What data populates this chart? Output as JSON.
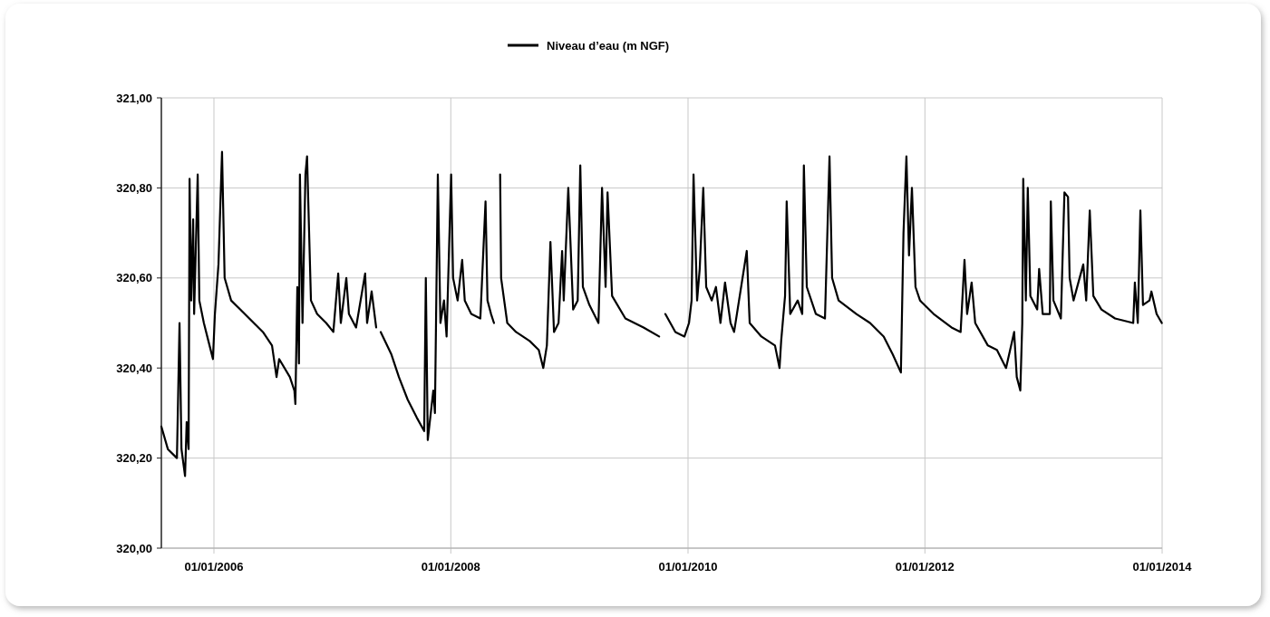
{
  "chart_data": {
    "type": "line",
    "legend": "top",
    "grid": true,
    "marker": "none",
    "line_style": "solid",
    "xlim": [
      "2005-07-23",
      "2014-01-01"
    ],
    "ylim": [
      320,
      321
    ],
    "xticks": [
      {
        "value": "2006-01-01",
        "label": "01/01/2006"
      },
      {
        "value": "2008-01-01",
        "label": "01/01/2008"
      },
      {
        "value": "2010-01-01",
        "label": "01/01/2010"
      },
      {
        "value": "2012-01-01",
        "label": "01/01/2012"
      },
      {
        "value": "2014-01-01",
        "label": "01/01/2014"
      }
    ],
    "yticks": [
      {
        "value": 320,
        "label": "320,00"
      },
      {
        "value": 320.2,
        "label": "320,20"
      },
      {
        "value": 320.4,
        "label": "320,40"
      },
      {
        "value": 320.6,
        "label": "320,60"
      },
      {
        "value": 320.8,
        "label": "320,80"
      },
      {
        "value": 321,
        "label": "321,00"
      }
    ],
    "x": [
      "2005-07-23",
      "2005-08-12",
      "2005-09-09",
      "2005-09-17",
      "2005-09-23",
      "2005-10-04",
      "2005-10-09",
      "2005-10-15",
      "2005-10-18",
      "2005-10-23",
      "2005-10-29",
      "2005-11-01",
      "2005-11-12",
      "2005-11-17",
      "2005-12-01",
      "2005-12-15",
      "2005-12-29",
      "2006-01-04",
      "2006-01-15",
      "2006-01-26",
      "2006-02-03",
      "2006-02-23",
      "2006-03-23",
      "2006-05-04",
      "2006-06-01",
      "2006-06-29",
      "2006-07-13",
      "2006-07-21",
      "2006-08-23",
      "2006-09-06",
      "2006-09-09",
      "2006-09-15",
      "2006-09-20",
      "2006-09-23",
      "2006-10-01",
      "2006-10-10",
      "2006-10-15",
      "2006-10-27",
      "2006-11-15",
      "2006-12-13",
      "2007-01-04",
      "2007-01-19",
      "2007-01-27",
      "2007-02-13",
      "2007-02-21",
      "2007-03-15",
      "2007-04-12",
      "2007-04-18",
      "2007-05-02",
      "2007-05-16",
      "2007-05-23",
      "2007-05-30",
      "2007-07-02",
      "2007-07-25",
      "2007-08-21",
      "2007-09-18",
      "2007-10-11",
      "2007-10-16",
      "2007-10-22",
      "2007-11-08",
      "2007-11-13",
      "2007-11-22",
      "2007-11-30",
      "2007-12-11",
      "2007-12-19",
      "2008-01-02",
      "2008-01-08",
      "2008-01-22",
      "2008-02-05",
      "2008-02-13",
      "2008-03-04",
      "2008-04-01",
      "2008-04-17",
      "2008-04-23",
      "2008-05-04",
      "2008-05-13",
      "2008-05-24",
      "2008-06-01",
      "2008-06-04",
      "2008-06-23",
      "2008-07-20",
      "2008-08-31",
      "2008-09-28",
      "2008-10-12",
      "2008-10-23",
      "2008-11-03",
      "2008-11-14",
      "2008-11-28",
      "2008-12-09",
      "2008-12-14",
      "2008-12-28",
      "2009-01-12",
      "2009-01-26",
      "2009-02-03",
      "2009-02-11",
      "2009-03-03",
      "2009-03-31",
      "2009-04-11",
      "2009-04-22",
      "2009-04-28",
      "2009-05-12",
      "2009-06-22",
      "2009-08-17",
      "2009-10-04",
      "2009-10-14",
      "2009-10-23",
      "2009-11-23",
      "2009-12-21",
      "2010-01-04",
      "2010-01-12",
      "2010-01-18",
      "2010-01-29",
      "2010-02-06",
      "2010-02-17",
      "2010-02-26",
      "2010-03-15",
      "2010-03-28",
      "2010-04-11",
      "2010-04-25",
      "2010-05-12",
      "2010-05-23",
      "2010-07-01",
      "2010-07-10",
      "2010-08-15",
      "2010-09-26",
      "2010-10-10",
      "2010-10-15",
      "2010-10-27",
      "2010-11-01",
      "2010-11-12",
      "2010-12-05",
      "2010-12-19",
      "2010-12-24",
      "2011-01-02",
      "2011-01-30",
      "2011-02-27",
      "2011-03-13",
      "2011-03-21",
      "2011-04-10",
      "2011-06-04",
      "2011-07-16",
      "2011-08-27",
      "2011-09-24",
      "2011-10-19",
      "2011-10-27",
      "2011-11-05",
      "2011-11-13",
      "2011-11-22",
      "2011-12-03",
      "2011-12-17",
      "2012-01-28",
      "2012-03-23",
      "2012-04-20",
      "2012-05-02",
      "2012-05-10",
      "2012-05-24",
      "2012-06-04",
      "2012-07-13",
      "2012-08-10",
      "2012-09-07",
      "2012-10-02",
      "2012-10-10",
      "2012-10-21",
      "2012-10-27",
      "2012-10-30",
      "2012-11-07",
      "2012-11-13",
      "2012-11-21",
      "2012-12-12",
      "2012-12-18",
      "2012-12-29",
      "2013-01-20",
      "2013-01-23",
      "2013-01-31",
      "2013-02-23",
      "2013-03-06",
      "2013-03-17",
      "2013-03-22",
      "2013-04-03",
      "2013-05-03",
      "2013-05-12",
      "2013-05-23",
      "2013-06-03",
      "2013-06-28",
      "2013-08-09",
      "2013-10-04",
      "2013-10-09",
      "2013-10-18",
      "2013-10-26",
      "2013-11-03",
      "2013-11-23",
      "2013-11-29",
      "2013-12-15",
      "2013-12-31"
    ],
    "series": [
      {
        "name": "Niveau d’eau (m NGF)",
        "color": "#000000",
        "values": [
          320.27,
          320.22,
          320.2,
          320.5,
          320.22,
          320.16,
          320.28,
          320.22,
          320.82,
          320.55,
          320.73,
          320.52,
          320.83,
          320.55,
          320.5,
          320.46,
          320.42,
          320.52,
          320.63,
          320.88,
          320.6,
          320.55,
          320.53,
          320.5,
          320.48,
          320.45,
          320.38,
          320.42,
          320.38,
          320.35,
          320.32,
          320.58,
          320.41,
          320.83,
          320.5,
          320.83,
          320.87,
          320.55,
          320.52,
          320.5,
          320.48,
          320.61,
          320.5,
          320.6,
          320.52,
          320.49,
          320.61,
          320.5,
          320.57,
          320.49,
          null,
          320.48,
          320.43,
          320.38,
          320.33,
          320.29,
          320.26,
          320.6,
          320.24,
          320.35,
          320.3,
          320.83,
          320.5,
          320.55,
          320.47,
          320.83,
          320.6,
          320.55,
          320.64,
          320.55,
          320.52,
          320.51,
          320.77,
          320.55,
          320.52,
          320.5,
          null,
          320.83,
          320.6,
          320.5,
          320.48,
          320.46,
          320.44,
          320.4,
          320.45,
          320.68,
          320.48,
          320.5,
          320.66,
          320.55,
          320.8,
          320.53,
          320.55,
          320.85,
          320.58,
          320.54,
          320.5,
          320.8,
          320.58,
          320.79,
          320.56,
          320.51,
          320.49,
          320.47,
          null,
          320.52,
          320.48,
          320.47,
          320.5,
          320.55,
          320.83,
          320.55,
          320.62,
          320.8,
          320.58,
          320.55,
          320.58,
          320.5,
          320.59,
          320.5,
          320.48,
          320.66,
          320.5,
          320.47,
          320.45,
          320.4,
          320.46,
          320.56,
          320.77,
          320.52,
          320.55,
          320.52,
          320.85,
          320.58,
          320.52,
          320.51,
          320.87,
          320.6,
          320.55,
          320.52,
          320.5,
          320.47,
          320.43,
          320.39,
          320.7,
          320.87,
          320.65,
          320.8,
          320.58,
          320.55,
          320.52,
          320.49,
          320.48,
          320.64,
          320.52,
          320.59,
          320.5,
          320.45,
          320.44,
          320.4,
          320.48,
          320.38,
          320.35,
          320.5,
          320.82,
          320.55,
          320.8,
          320.56,
          320.53,
          320.62,
          320.52,
          320.52,
          320.77,
          320.55,
          320.51,
          320.79,
          320.78,
          320.6,
          320.55,
          320.63,
          320.55,
          320.75,
          320.56,
          320.53,
          320.51,
          320.5,
          320.59,
          320.5,
          320.75,
          320.54,
          320.55,
          320.57,
          320.52,
          320.5
        ]
      }
    ]
  }
}
